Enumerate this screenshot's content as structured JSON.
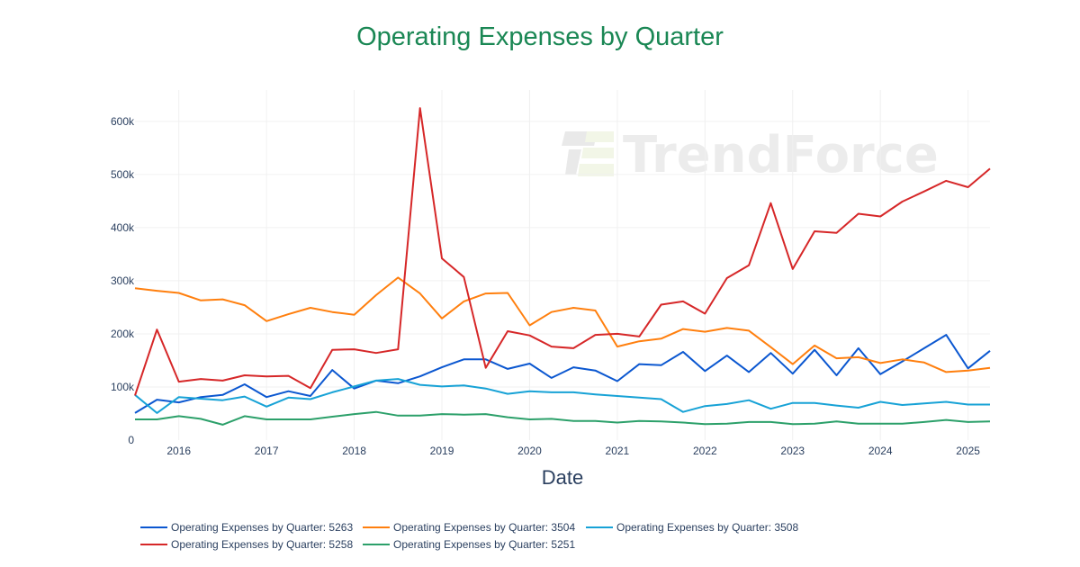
{
  "chart_data": {
    "type": "line",
    "title": "Operating Expenses by Quarter",
    "xlabel": "Date",
    "ylabel": "",
    "ylim": [
      0,
      650000
    ],
    "xlim": [
      "2015-07-01",
      "2025-04-01"
    ],
    "grid": true,
    "legend_position": "bottom-left",
    "watermark": "TrendForce",
    "y_ticks": [
      {
        "value": 0,
        "label": "0"
      },
      {
        "value": 100000,
        "label": "100k"
      },
      {
        "value": 200000,
        "label": "200k"
      },
      {
        "value": 300000,
        "label": "300k"
      },
      {
        "value": 400000,
        "label": "400k"
      },
      {
        "value": 500000,
        "label": "500k"
      },
      {
        "value": 600000,
        "label": "600k"
      }
    ],
    "x_ticks": [
      {
        "value": 2016,
        "label": "2016"
      },
      {
        "value": 2017,
        "label": "2017"
      },
      {
        "value": 2018,
        "label": "2018"
      },
      {
        "value": 2019,
        "label": "2019"
      },
      {
        "value": 2020,
        "label": "2020"
      },
      {
        "value": 2021,
        "label": "2021"
      },
      {
        "value": 2022,
        "label": "2022"
      },
      {
        "value": 2023,
        "label": "2023"
      },
      {
        "value": 2024,
        "label": "2024"
      },
      {
        "value": 2025,
        "label": "2025"
      }
    ],
    "x": [
      "2015-07",
      "2015-10",
      "2016-01",
      "2016-04",
      "2016-07",
      "2016-10",
      "2017-01",
      "2017-04",
      "2017-07",
      "2017-10",
      "2018-01",
      "2018-04",
      "2018-07",
      "2018-10",
      "2019-01",
      "2019-04",
      "2019-07",
      "2019-10",
      "2020-01",
      "2020-04",
      "2020-07",
      "2020-10",
      "2021-01",
      "2021-04",
      "2021-07",
      "2021-10",
      "2022-01",
      "2022-04",
      "2022-07",
      "2022-10",
      "2023-01",
      "2023-04",
      "2023-07",
      "2023-10",
      "2024-01",
      "2024-04",
      "2024-07",
      "2024-10",
      "2025-01",
      "2025-04"
    ],
    "series": [
      {
        "name": "Operating Expenses by Quarter: 5263",
        "color": "#0b57d0",
        "values": [
          51000,
          76000,
          71000,
          81000,
          85000,
          105000,
          81000,
          92000,
          83000,
          132000,
          97000,
          112000,
          107000,
          120000,
          137000,
          152000,
          152000,
          134000,
          144000,
          117000,
          137000,
          131000,
          111000,
          143000,
          141000,
          166000,
          130000,
          159000,
          128000,
          164000,
          125000,
          170000,
          122000,
          173000,
          124000,
          148000,
          173000,
          198000,
          135000,
          168000
        ]
      },
      {
        "name": "Operating Expenses by Quarter: 3504",
        "color": "#ff7f0e",
        "values": [
          286000,
          281000,
          277000,
          263000,
          265000,
          254000,
          224000,
          237000,
          249000,
          241000,
          236000,
          273000,
          306000,
          276000,
          229000,
          261000,
          276000,
          277000,
          216000,
          241000,
          249000,
          244000,
          176000,
          186000,
          191000,
          209000,
          204000,
          211000,
          206000,
          175000,
          143000,
          178000,
          154000,
          156000,
          145000,
          152000,
          146000,
          128000,
          131000,
          136000
        ]
      },
      {
        "name": "Operating Expenses by Quarter: 3508",
        "color": "#17a2d6",
        "values": [
          85000,
          51000,
          81000,
          78000,
          75000,
          82000,
          63000,
          80000,
          77000,
          90000,
          101000,
          112000,
          115000,
          104000,
          101000,
          103000,
          97000,
          87000,
          92000,
          90000,
          90000,
          86000,
          83000,
          80000,
          77000,
          53000,
          64000,
          68000,
          75000,
          59000,
          70000,
          70000,
          65000,
          61000,
          72000,
          66000,
          69000,
          72000,
          67000,
          67000
        ]
      },
      {
        "name": "Operating Expenses by Quarter: 5258",
        "color": "#d62728",
        "values": [
          84000,
          208000,
          110000,
          115000,
          112000,
          122000,
          120000,
          121000,
          98000,
          170000,
          171000,
          164000,
          171000,
          625000,
          342000,
          307000,
          136000,
          205000,
          197000,
          176000,
          173000,
          198000,
          200000,
          195000,
          255000,
          261000,
          238000,
          305000,
          329000,
          446000,
          322000,
          393000,
          390000,
          426000,
          421000,
          449000,
          468000,
          488000,
          476000,
          511000
        ]
      },
      {
        "name": "Operating Expenses by Quarter: 5251",
        "color": "#2ca06a",
        "values": [
          39000,
          39000,
          45000,
          40000,
          29000,
          45000,
          39000,
          39000,
          39000,
          44000,
          49000,
          53000,
          46000,
          46000,
          49000,
          48000,
          49000,
          43000,
          39000,
          40000,
          36000,
          36000,
          33000,
          36000,
          35000,
          33000,
          30000,
          31000,
          34000,
          34000,
          30000,
          31000,
          35000,
          31000,
          31000,
          31000,
          34000,
          38000,
          34000,
          35000
        ]
      }
    ]
  }
}
